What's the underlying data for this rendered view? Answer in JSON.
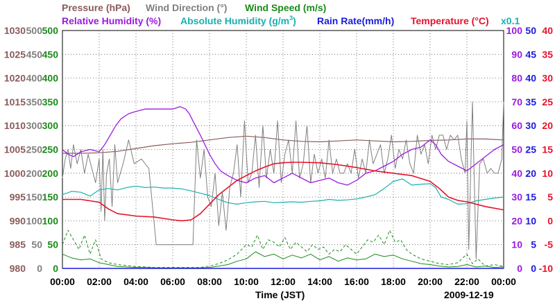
{
  "colors": {
    "pressure": "#8b5a5a",
    "wind_dir": "#7f7f7f",
    "wind_speed": "#1a8a1a",
    "rel_humidity": "#9a1ae0",
    "abs_humidity": "#1ab0b0",
    "rain_rate": "#1a1adc",
    "temperature": "#e8102a",
    "black": "#000000",
    "grid": "#555555"
  },
  "chart_data": {
    "type": "line",
    "date": "2009-12-19",
    "xlabel": "Time (JST)",
    "x_tick_labels": [
      "00:00",
      "02:00",
      "04:00",
      "06:00",
      "08:00",
      "10:00",
      "12:00",
      "14:00",
      "16:00",
      "18:00",
      "20:00",
      "22:00",
      "00:00"
    ],
    "x_range_hours": [
      0,
      24
    ],
    "legend": {
      "pressure": "Pressure (hPa)",
      "wind_dir": "Wind Direction (°)",
      "wind_speed": "Wind Speed (m/s)",
      "rel_humidity": "Relative Humidity (%)",
      "abs_humidity_a": "Absolute Humidity (g/m",
      "abs_humidity_sup": "3",
      "abs_humidity_b": ")",
      "rain_rate": "Rain Rate(mm/h)",
      "temperature": "Temperature (°C)",
      "rain_scale_note": "x0.1"
    },
    "axes": {
      "pressure": {
        "range": [
          980,
          1030
        ],
        "ticks": [
          "980",
          "985",
          "990",
          "995",
          "1000",
          "1005",
          "1010",
          "1015",
          "1020",
          "1025",
          "1030"
        ]
      },
      "wind_dir": {
        "range": [
          0,
          500
        ],
        "ticks": [
          "0",
          "50",
          "100",
          "150",
          "200",
          "250",
          "300",
          "350",
          "400",
          "450",
          "500"
        ]
      },
      "rel_humidity": {
        "range": [
          0,
          100
        ],
        "ticks": [
          "0",
          "10",
          "20",
          "30",
          "40",
          "50",
          "60",
          "70",
          "80",
          "90",
          "100"
        ]
      },
      "abs_humidity": {
        "range": [
          0,
          50
        ],
        "ticks": [
          "0",
          "5",
          "10",
          "15",
          "20",
          "25",
          "30",
          "35",
          "40",
          "45",
          "50"
        ]
      },
      "temperature": {
        "range": [
          -10,
          40
        ],
        "ticks": [
          "-10",
          "-5",
          "0",
          "5",
          "10",
          "15",
          "20",
          "25",
          "30",
          "35",
          "40"
        ]
      }
    },
    "series": [
      {
        "name": "Pressure (hPa)",
        "axis": "pressure",
        "x": [
          0,
          1,
          2,
          3,
          4,
          5,
          6,
          7,
          8,
          9,
          10,
          11,
          12,
          13,
          14,
          15,
          16,
          17,
          18,
          19,
          20,
          21,
          22,
          23,
          24
        ],
        "values": [
          1004.2,
          1004.2,
          1004.3,
          1004.6,
          1005.2,
          1005.8,
          1006.2,
          1006.5,
          1007.0,
          1007.5,
          1007.8,
          1007.5,
          1007.0,
          1006.7,
          1006.6,
          1006.8,
          1007.0,
          1006.8,
          1006.6,
          1006.7,
          1006.9,
          1007.0,
          1007.2,
          1007.2,
          1007.0
        ]
      },
      {
        "name": "Wind Direction (°)",
        "axis": "wind_dir",
        "x": [
          0,
          0.15,
          0.3,
          0.45,
          0.6,
          0.8,
          1.0,
          1.2,
          1.4,
          1.6,
          1.8,
          2.0,
          2.1,
          2.2,
          2.3,
          2.4,
          2.55,
          2.7,
          2.85,
          3.0,
          3.3,
          3.6,
          3.9,
          4.3,
          4.7,
          5.1,
          5.5,
          5.9,
          6.3,
          6.7,
          7.1,
          7.3,
          7.5,
          7.7,
          7.9,
          8.1,
          8.3,
          8.5,
          8.7,
          8.9,
          9.1,
          9.3,
          9.5,
          9.7,
          9.9,
          10.1,
          10.3,
          10.5,
          10.7,
          10.9,
          11.1,
          11.3,
          11.5,
          11.7,
          11.9,
          12.1,
          12.3,
          12.5,
          12.7,
          12.9,
          13.1,
          13.3,
          13.5,
          13.7,
          13.9,
          14.1,
          14.3,
          14.5,
          14.7,
          14.9,
          15.1,
          15.3,
          15.5,
          15.7,
          15.9,
          16.1,
          16.3,
          16.5,
          16.7,
          16.9,
          17.1,
          17.3,
          17.5,
          17.7,
          17.9,
          18.1,
          18.3,
          18.5,
          18.7,
          18.9,
          19.1,
          19.3,
          19.5,
          19.7,
          19.9,
          20.1,
          20.3,
          20.5,
          20.7,
          20.9,
          21.1,
          21.3,
          21.5,
          21.7,
          21.9,
          22.0,
          22.1,
          22.3,
          22.5,
          22.7,
          22.9,
          23.1,
          23.3,
          23.5,
          23.7,
          23.9,
          24.0
        ],
        "values": [
          190,
          230,
          250,
          210,
          260,
          220,
          250,
          200,
          240,
          210,
          180,
          230,
          120,
          250,
          100,
          200,
          230,
          130,
          260,
          180,
          220,
          270,
          220,
          230,
          210,
          50,
          50,
          50,
          50,
          50,
          50,
          270,
          190,
          250,
          150,
          130,
          200,
          90,
          160,
          80,
          170,
          200,
          260,
          150,
          310,
          180,
          200,
          280,
          170,
          300,
          190,
          250,
          200,
          310,
          180,
          240,
          270,
          200,
          310,
          190,
          220,
          300,
          180,
          240,
          200,
          230,
          190,
          270,
          200,
          230,
          200,
          200,
          220,
          200,
          250,
          190,
          230,
          200,
          270,
          220,
          240,
          260,
          200,
          230,
          280,
          210,
          250,
          230,
          270,
          220,
          200,
          280,
          240,
          260,
          220,
          280,
          250,
          280,
          280,
          250,
          280,
          270,
          280,
          230,
          200,
          310,
          40,
          350,
          20,
          220,
          230,
          200,
          210,
          200,
          200,
          230,
          350
        ]
      },
      {
        "name": "Wind Speed (m/s) solid",
        "axis": "wind_dir",
        "x": [
          0,
          0.5,
          1.0,
          1.5,
          2.0,
          2.5,
          3.0,
          3.5,
          4.0,
          4.5,
          5.0,
          5.5,
          6.0,
          6.5,
          7.0,
          7.5,
          8.0,
          8.5,
          9.0,
          9.5,
          10.0,
          10.5,
          11.0,
          11.5,
          12.0,
          12.5,
          13.0,
          13.5,
          14.0,
          14.5,
          15.0,
          15.5,
          16.0,
          16.5,
          17.0,
          17.5,
          18.0,
          18.5,
          19.0,
          19.5,
          20.0,
          20.5,
          21.0,
          21.5,
          22.0,
          22.5,
          23.0,
          23.5,
          24.0
        ],
        "values": [
          30,
          22,
          18,
          20,
          12,
          8,
          4,
          3,
          2,
          2,
          1,
          1,
          1,
          1,
          1,
          1,
          2,
          5,
          8,
          15,
          20,
          35,
          25,
          30,
          20,
          28,
          22,
          30,
          18,
          25,
          15,
          22,
          18,
          20,
          30,
          25,
          28,
          20,
          15,
          10,
          8,
          5,
          3,
          4,
          8,
          3,
          5,
          2,
          3
        ]
      },
      {
        "name": "Wind Speed (m/s) dashed",
        "axis": "wind_dir",
        "x": [
          0,
          0.3,
          0.6,
          0.9,
          1.2,
          1.5,
          1.8,
          2.1,
          2.5,
          3.0,
          3.5,
          4.0,
          4.5,
          5.0,
          5.5,
          6.0,
          6.5,
          7.0,
          7.5,
          8.0,
          8.5,
          9.0,
          9.5,
          10.0,
          10.3,
          10.6,
          10.9,
          11.2,
          11.5,
          11.8,
          12.1,
          12.4,
          12.7,
          13.0,
          13.3,
          13.6,
          13.9,
          14.2,
          14.5,
          14.8,
          15.1,
          15.4,
          15.7,
          16.0,
          16.3,
          16.6,
          16.9,
          17.2,
          17.5,
          17.8,
          18.1,
          18.4,
          18.7,
          19.0,
          19.5,
          20.0,
          20.5,
          21.0,
          21.5,
          22.0,
          22.3,
          22.6,
          23.0,
          23.5,
          24.0
        ],
        "values": [
          50,
          80,
          60,
          40,
          70,
          30,
          60,
          20,
          12,
          8,
          6,
          4,
          3,
          2,
          2,
          2,
          2,
          2,
          2,
          5,
          10,
          18,
          30,
          50,
          45,
          70,
          40,
          60,
          55,
          45,
          65,
          40,
          55,
          45,
          35,
          50,
          40,
          45,
          30,
          40,
          35,
          50,
          40,
          30,
          45,
          60,
          55,
          70,
          50,
          80,
          55,
          60,
          40,
          30,
          20,
          15,
          10,
          8,
          12,
          30,
          10,
          20,
          5,
          8,
          4
        ]
      },
      {
        "name": "Relative Humidity (%)",
        "axis": "rel_humidity",
        "x": [
          0,
          0.3,
          0.6,
          1.0,
          1.5,
          2.0,
          2.3,
          2.6,
          2.9,
          3.2,
          3.6,
          4.0,
          4.5,
          5.0,
          5.5,
          6.0,
          6.4,
          6.7,
          6.9,
          7.1,
          7.5,
          8.0,
          8.3,
          8.6,
          9.0,
          9.5,
          10.0,
          10.5,
          11.0,
          11.5,
          12.0,
          12.5,
          13.0,
          13.5,
          14.0,
          14.5,
          15.0,
          15.5,
          16.0,
          16.5,
          17.0,
          17.5,
          18.0,
          18.5,
          19.0,
          19.5,
          20.0,
          20.3,
          20.6,
          21.0,
          21.5,
          22.0,
          22.5,
          23.0,
          23.5,
          24.0
        ],
        "values": [
          50,
          48,
          47,
          49,
          50,
          49,
          52,
          56,
          60,
          63,
          65,
          66,
          67,
          67,
          67,
          67,
          68,
          67,
          65,
          62,
          56,
          48,
          44,
          41,
          39,
          37,
          36,
          38,
          39,
          36,
          38,
          40,
          38,
          36,
          37,
          38,
          36,
          35,
          37,
          40,
          41,
          43,
          45,
          48,
          50,
          51,
          54,
          52,
          48,
          45,
          43,
          41,
          44,
          47,
          50,
          52
        ]
      },
      {
        "name": "Absolute Humidity (g/m3)",
        "axis": "abs_humidity",
        "x": [
          0,
          0.5,
          1.0,
          1.5,
          2.0,
          2.5,
          3.0,
          3.5,
          4.0,
          4.5,
          5.0,
          5.5,
          6.0,
          6.5,
          7.0,
          7.5,
          8.0,
          8.5,
          9.0,
          9.5,
          10.0,
          10.5,
          11.0,
          11.5,
          12.0,
          12.5,
          13.0,
          13.5,
          14.0,
          14.5,
          15.0,
          15.5,
          16.0,
          16.5,
          17.0,
          17.5,
          18.0,
          18.5,
          19.0,
          19.5,
          20.0,
          20.3,
          20.6,
          21.0,
          21.5,
          22.0,
          22.5,
          23.0,
          23.5,
          24.0
        ],
        "values": [
          15.5,
          16.2,
          16.0,
          15.2,
          16.5,
          16.8,
          16.5,
          17.0,
          17.3,
          17.0,
          17.1,
          16.9,
          16.9,
          16.7,
          16.3,
          15.8,
          15.3,
          14.5,
          13.8,
          13.5,
          13.8,
          14.0,
          14.1,
          13.8,
          13.9,
          14.0,
          13.9,
          14.1,
          14.2,
          14.5,
          14.3,
          14.4,
          14.6,
          15.0,
          15.5,
          16.8,
          18.3,
          18.8,
          17.5,
          17.7,
          17.8,
          17.0,
          15.0,
          14.5,
          13.5,
          13.6,
          14.2,
          14.5,
          14.8,
          15.0
        ]
      },
      {
        "name": "Temperature (°C)",
        "axis": "temperature",
        "x": [
          0,
          1,
          2,
          2.5,
          3,
          4,
          5,
          6,
          6.5,
          7,
          7.5,
          8,
          8.5,
          9,
          9.5,
          10,
          10.5,
          11,
          11.5,
          12,
          12.5,
          13,
          14,
          15,
          16,
          17,
          18,
          19,
          20,
          20.5,
          21,
          21.5,
          22,
          23,
          24
        ],
        "values": [
          4.5,
          4.5,
          3.9,
          2.5,
          1.5,
          1.0,
          0.8,
          0.2,
          0.0,
          0.2,
          1.5,
          3.5,
          5.5,
          7.0,
          8.5,
          9.5,
          10.5,
          11.3,
          12.0,
          12.2,
          12.3,
          12.3,
          12.2,
          11.8,
          11.2,
          10.5,
          10.0,
          9.5,
          8.3,
          6.8,
          5.0,
          4.3,
          4.0,
          3.0,
          2.3
        ]
      },
      {
        "name": "Rain Rate (mm/h) x0.1",
        "axis": "abs_humidity",
        "x": [
          0,
          24
        ],
        "values": [
          0,
          0
        ]
      }
    ]
  }
}
